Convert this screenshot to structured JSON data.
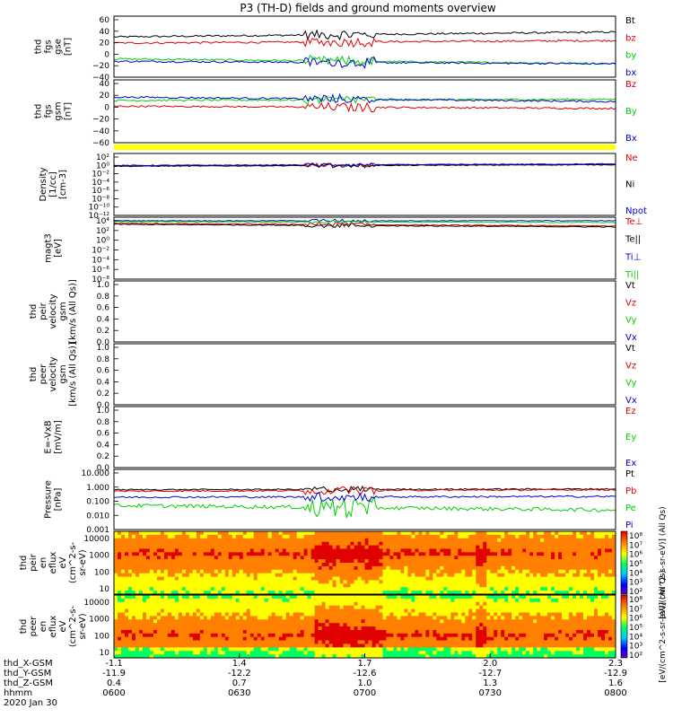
{
  "title": "P3 (TH-D) fields and ground moments overview",
  "colors": {
    "black": "#000000",
    "red": "#e00000",
    "green": "#00d000",
    "blue": "#0000d0",
    "yellow": "#ffff00"
  },
  "chart_data": [
    {
      "type": "line",
      "panel": "fgs-gse",
      "ylabel_lines": [
        "thd",
        "fgs",
        "gse",
        "[nT]"
      ],
      "ylim": [
        -40,
        60
      ],
      "yticks": [
        "60",
        "40",
        "20",
        "0",
        "−20",
        "−40"
      ],
      "series": [
        {
          "name": "Bt",
          "color": "black",
          "base": 26,
          "trend": 8,
          "noise": 3
        },
        {
          "name": "bz",
          "color": "red",
          "base": 16,
          "trend": 4,
          "noise": 3
        },
        {
          "name": "by",
          "color": "green",
          "base": -10,
          "trend": -8,
          "noise": 3
        },
        {
          "name": "bx",
          "color": "blue",
          "base": -14,
          "trend": -4,
          "noise": 3
        }
      ]
    },
    {
      "type": "line",
      "panel": "fgs-gsm",
      "ylabel_lines": [
        "thd",
        "fgs",
        "gsm",
        "[nT]"
      ],
      "ylim": [
        -70,
        40
      ],
      "yticks": [
        "40",
        "20",
        "0",
        "−20",
        "−40",
        "−60"
      ],
      "series": [
        {
          "name": "Bz",
          "color": "red",
          "base": -6,
          "trend": -4,
          "noise": 3
        },
        {
          "name": "By",
          "color": "green",
          "base": 4,
          "trend": 2,
          "noise": 3
        },
        {
          "name": "Bx",
          "color": "blue",
          "base": 10,
          "trend": -8,
          "noise": 3
        }
      ]
    },
    {
      "type": "line",
      "panel": "density",
      "ylabel_lines": [
        "Density",
        "[1/cc]",
        "[cm-3]"
      ],
      "ylim_log": [
        -13,
        3
      ],
      "yticks": [
        "10²",
        "10⁰",
        "10⁻²",
        "10⁻⁴",
        "10⁻⁶",
        "10⁻⁸",
        "10⁻¹⁰",
        "10⁻¹²"
      ],
      "series": [
        {
          "name": "Ne",
          "color": "red",
          "base": -0.2,
          "trend": 0.4,
          "noise": 0.2
        },
        {
          "name": "Ni",
          "color": "black",
          "base": -0.3,
          "trend": 0.4,
          "noise": 0.2
        },
        {
          "name": "Npot",
          "color": "blue",
          "base": -0.1,
          "trend": 0.4,
          "noise": 0.2
        }
      ]
    },
    {
      "type": "line",
      "panel": "temperature",
      "ylabel_lines": [
        "magt3",
        "[eV]"
      ],
      "ylim_log": [
        -9,
        5
      ],
      "yticks": [
        "10⁴",
        "10²",
        "10⁰",
        "10⁻²",
        "10⁻⁴",
        "10⁻⁶",
        "10⁻⁸"
      ],
      "series": [
        {
          "name": "Te⊥",
          "color": "red",
          "base": 3.6,
          "trend": -0.6,
          "noise": 0.2
        },
        {
          "name": "Te||",
          "color": "black",
          "base": 3.4,
          "trend": -0.6,
          "noise": 0.2
        },
        {
          "name": "Ti⊥",
          "color": "blue",
          "base": 4.2,
          "trend": 0.0,
          "noise": 0.15
        },
        {
          "name": "Ti||",
          "color": "green",
          "base": 4.0,
          "trend": -0.2,
          "noise": 0.15
        }
      ]
    },
    {
      "type": "line",
      "panel": "peir-velocity",
      "ylabel_lines": [
        "thd",
        "peir",
        "velocity",
        "gsm",
        "[km/s (All Qs)]"
      ],
      "ylim": [
        0,
        1
      ],
      "yticks": [
        "1.0",
        "0.8",
        "0.6",
        "0.4",
        "0.2",
        "0.0"
      ],
      "series": [
        {
          "name": "Vt",
          "color": "black"
        },
        {
          "name": "Vz",
          "color": "red"
        },
        {
          "name": "Vy",
          "color": "green"
        },
        {
          "name": "Vx",
          "color": "blue"
        }
      ]
    },
    {
      "type": "line",
      "panel": "peer-velocity",
      "ylabel_lines": [
        "thd",
        "peer",
        "velocity",
        "gsm",
        "[km/s (All Qs)]"
      ],
      "ylim": [
        0,
        1
      ],
      "yticks": [
        "1.0",
        "0.8",
        "0.6",
        "0.4",
        "0.2",
        "0.0"
      ],
      "series": [
        {
          "name": "Vt",
          "color": "black"
        },
        {
          "name": "Vz",
          "color": "red"
        },
        {
          "name": "Vy",
          "color": "green"
        },
        {
          "name": "Vx",
          "color": "blue"
        }
      ]
    },
    {
      "type": "line",
      "panel": "efield",
      "ylabel_lines": [
        "E=-VxB",
        "[mV/m]"
      ],
      "ylim": [
        0,
        1
      ],
      "yticks": [
        "1.0",
        "0.8",
        "0.6",
        "0.4",
        "0.2",
        "0.0"
      ],
      "series": [
        {
          "name": "Ez",
          "color": "red"
        },
        {
          "name": "Ey",
          "color": "green"
        },
        {
          "name": "Ex",
          "color": "blue"
        }
      ]
    },
    {
      "type": "line",
      "panel": "pressure",
      "ylabel_lines": [
        "Pressure",
        "[nPa]"
      ],
      "ylim_log": [
        -3,
        1
      ],
      "yticks": [
        "10.000",
        "1.000",
        "0.100",
        "0.010",
        "0.001"
      ],
      "series": [
        {
          "name": "Pt",
          "color": "black",
          "base": -0.35,
          "trend": 0.05,
          "noise": 0.08
        },
        {
          "name": "Pb",
          "color": "red",
          "base": -0.45,
          "trend": 0.1,
          "noise": 0.1
        },
        {
          "name": "Pe",
          "color": "green",
          "base": -1.4,
          "trend": -0.3,
          "noise": 0.25
        },
        {
          "name": "Pi",
          "color": "blue",
          "base": -0.85,
          "trend": 0.05,
          "noise": 0.12
        }
      ]
    },
    {
      "type": "heatmap",
      "panel": "peir-eflux",
      "ylabel_lines": [
        "thd",
        "peir",
        "en",
        "eflux",
        "eV",
        "(cm^2-s-",
        "sr-eV)"
      ],
      "ylim_log": [
        0.7,
        4.3
      ],
      "yticks": [
        "10000",
        "1000",
        "100",
        "10"
      ],
      "colorbar_ticks": [
        "10⁸",
        "10⁷",
        "10⁶",
        "10⁵",
        "10⁴",
        "10³",
        "10²"
      ],
      "colorbar_label": "[eV/(cm^2-s-sr-eV)] (All Qs)",
      "peak_energy_log": 3.0
    },
    {
      "type": "heatmap",
      "panel": "peer-eflux",
      "ylabel_lines": [
        "thd",
        "peer",
        "en",
        "eflux",
        "eV",
        "(cm^2-s-",
        "sr-eV)"
      ],
      "ylim_log": [
        0.7,
        4.3
      ],
      "yticks": [
        "10000",
        "1000",
        "100",
        "10"
      ],
      "colorbar_ticks": [
        "10⁸",
        "10⁷",
        "10⁶",
        "10⁵",
        "10⁴",
        "10³",
        "10²"
      ],
      "colorbar_label": "[eV/(cm^2-s-sr-eV)] (All Qs)",
      "peak_energy_log": 2.0
    }
  ],
  "xaxis": {
    "row_labels": [
      "thd_X-GSM",
      "thd_Y-GSM",
      "thd_Z-GSM",
      "hhmm",
      "2020 Jan 30"
    ],
    "ticks": [
      {
        "x": "-1.1",
        "y": "-11.9",
        "z": "0.4",
        "t": "0600"
      },
      {
        "x": "1.4",
        "y": "-12.2",
        "z": "0.7",
        "t": "0630"
      },
      {
        "x": "1.7",
        "y": "-12.6",
        "z": "1.0",
        "t": "0700"
      },
      {
        "x": "2.0",
        "y": "-12.7",
        "z": "1.3",
        "t": "0730"
      },
      {
        "x": "2.3",
        "y": "-12.9",
        "z": "1.6",
        "t": "0800"
      }
    ]
  }
}
